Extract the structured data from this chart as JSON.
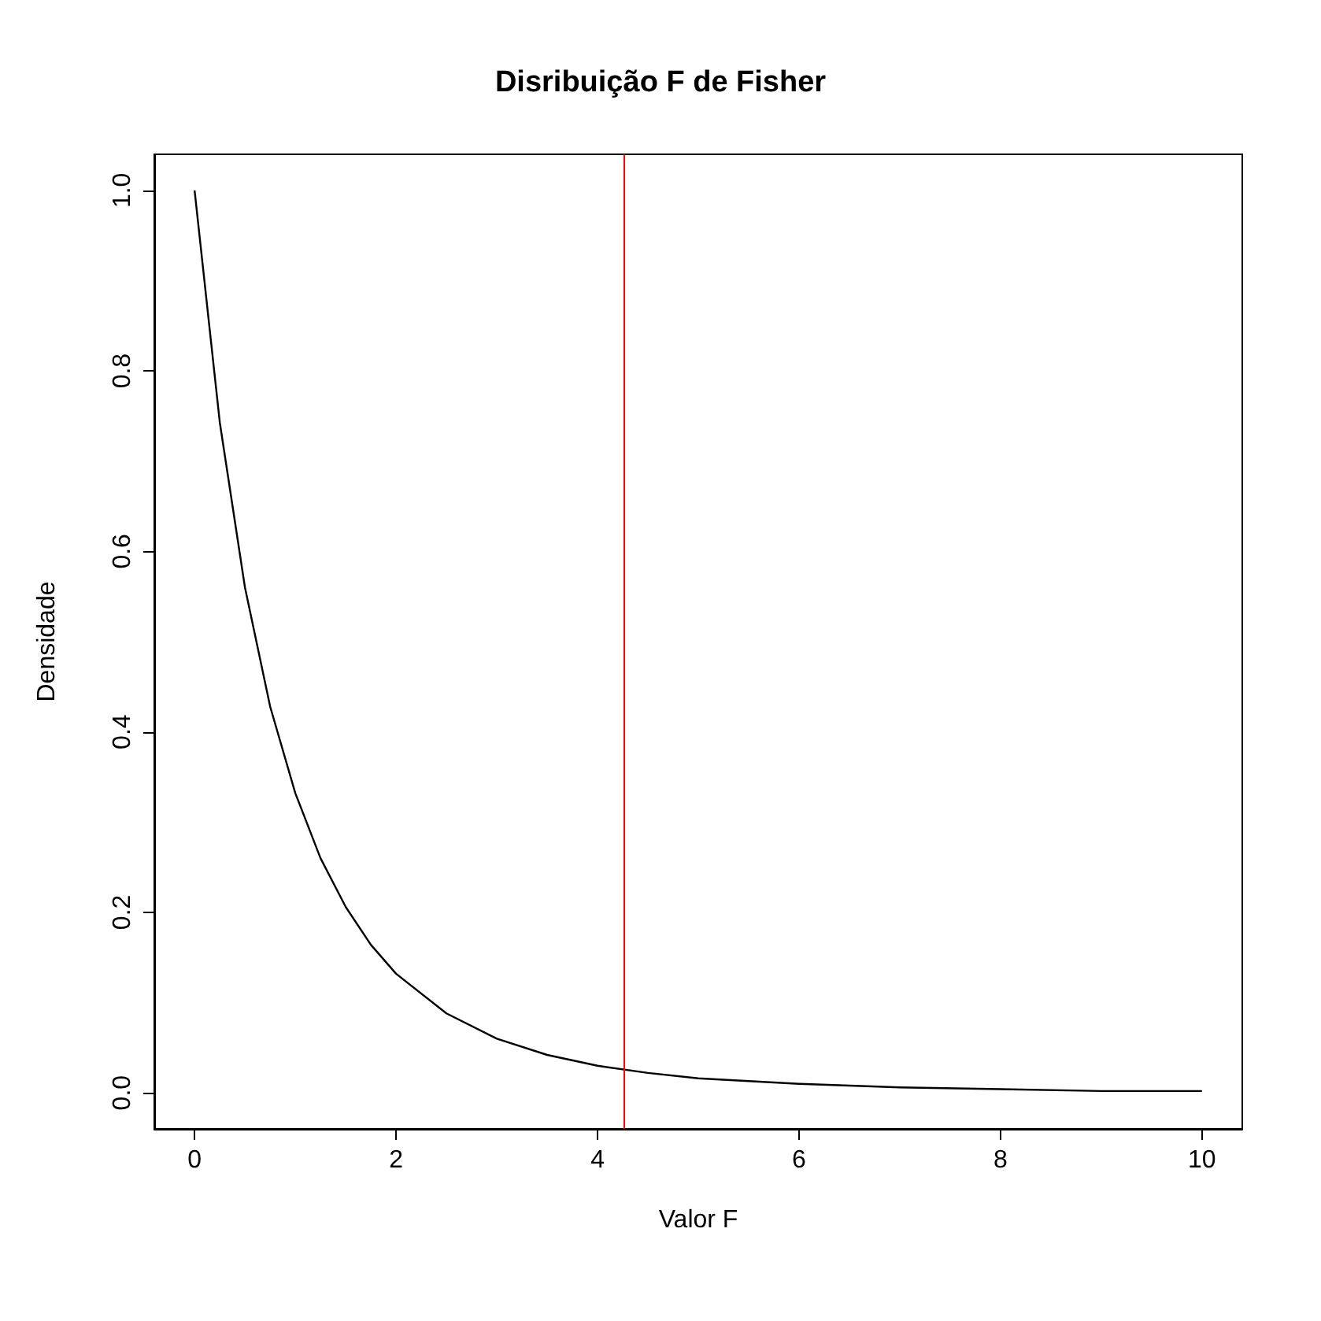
{
  "chart_data": {
    "type": "line",
    "title": "Disribuição F de Fisher",
    "xlabel": "Valor F",
    "ylabel": "Densidade",
    "x": [
      0,
      0.25,
      0.5,
      0.75,
      1,
      1.25,
      1.5,
      1.75,
      2,
      2.5,
      3,
      3.5,
      4,
      4.5,
      5,
      6,
      7,
      8,
      9,
      10
    ],
    "series": [
      {
        "color": "#000000",
        "values": [
          1,
          0.743,
          0.56,
          0.428,
          0.332,
          0.26,
          0.206,
          0.164,
          0.132,
          0.088,
          0.06,
          0.042,
          0.03,
          0.022,
          0.016,
          0.01,
          0.006,
          0.004,
          0.002,
          0.002
        ]
      }
    ],
    "xlim": [
      -0.4,
      10.4
    ],
    "xticks": [
      0,
      2,
      4,
      6,
      8,
      10
    ],
    "ylim": [
      -0.04,
      1.04
    ],
    "yticks": [
      {
        "value": 0,
        "label": "0.0"
      },
      {
        "value": 0.2,
        "label": "0.2"
      },
      {
        "value": 0.4,
        "label": "0.4"
      },
      {
        "value": 0.6,
        "label": "0.6"
      },
      {
        "value": 0.8,
        "label": "0.8"
      },
      {
        "value": 1,
        "label": "1.0"
      }
    ],
    "ref_lines": [
      {
        "axis": "x",
        "value": 4.26,
        "color": "#ff0000"
      }
    ],
    "grid": false,
    "marker": "none",
    "line_style": "solid"
  }
}
